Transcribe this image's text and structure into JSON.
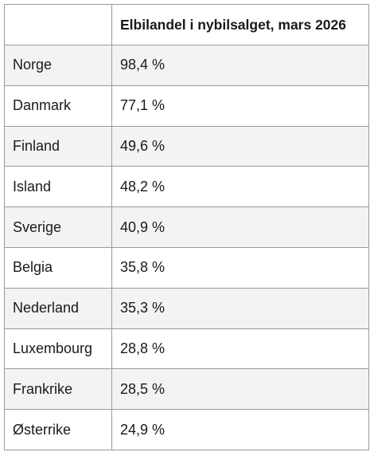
{
  "table": {
    "header": {
      "value_column": "Elbilandel i nybilsalget, mars 2026"
    },
    "rows": [
      [
        "Norge",
        "98,4 %"
      ],
      [
        "Danmark",
        "77,1 %"
      ],
      [
        "Finland",
        "49,6 %"
      ],
      [
        "Island",
        "48,2 %"
      ],
      [
        "Sverige",
        "40,9 %"
      ],
      [
        "Belgia",
        "35,8 %"
      ],
      [
        "Nederland",
        "35,3 %"
      ],
      [
        "Luxembourg",
        "28,8 %"
      ],
      [
        "Frankrike",
        "28,5 %"
      ],
      [
        "Østerrike",
        "24,9 %"
      ]
    ]
  }
}
